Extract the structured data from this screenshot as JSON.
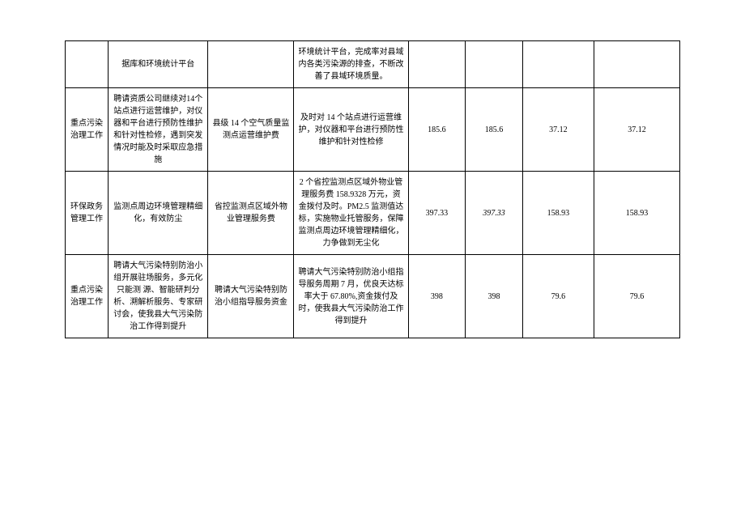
{
  "table": {
    "rows": [
      {
        "c1": "",
        "c2": "据库和环境统计平台",
        "c3": "",
        "c4": "环境统计平台，完成率对县域内各类污染源的排查，不断改善了县域环境质量。",
        "c5": "",
        "c6": "",
        "c7": "",
        "c8": ""
      },
      {
        "c1": "重点污染治理工作",
        "c2": "聘请资质公司继续对14个站点进行运营维护，对仪器和平台进行预防性维护和针对性检修，遇到突发情况时能及时采取应急措施",
        "c3": "县级 14 个空气质量监测点运营维护费",
        "c4": "及时对 14 个站点进行运营维护，对仪器和平台进行预防性维护和针对性检修",
        "c5": "185.6",
        "c6": "185.6",
        "c7": "37.12",
        "c8": "37.12"
      },
      {
        "c1": "环保政务管理工作",
        "c2": "监测点周边环境管理精细化，有效防尘",
        "c3": "省控监测点区域外物业管理服务费",
        "c4": "2 个省控监测点区域外物业管理服务费 158.9328 万元，资金拨付及时。PM2.5 监测值达标，实施物业托管服务，保障监测点周边环境管理精细化，力争做到无尘化",
        "c5": "397.33",
        "c6": "397.33",
        "c6_italic": true,
        "c7": "158.93",
        "c8": "158.93"
      },
      {
        "c1": "重点污染治理工作",
        "c2": "聘请大气污染特别防治小组开展驻场服务，多元化只能测\n源、智能研判分析、溯解析服务、专家研讨会，使我县大气污染防治工作得到提升",
        "c3": "聘请大气污染特别防治小组指导服务资金",
        "c4": "聘请大气污染特别防治小组指导服务周期 7 月，优良天达标率大于\n67.80%,资金拨付及时，使我县大气污染防治工作\n得到提升",
        "c5": "398",
        "c6": "398",
        "c7": "79.6",
        "c8": "79.6"
      }
    ]
  }
}
